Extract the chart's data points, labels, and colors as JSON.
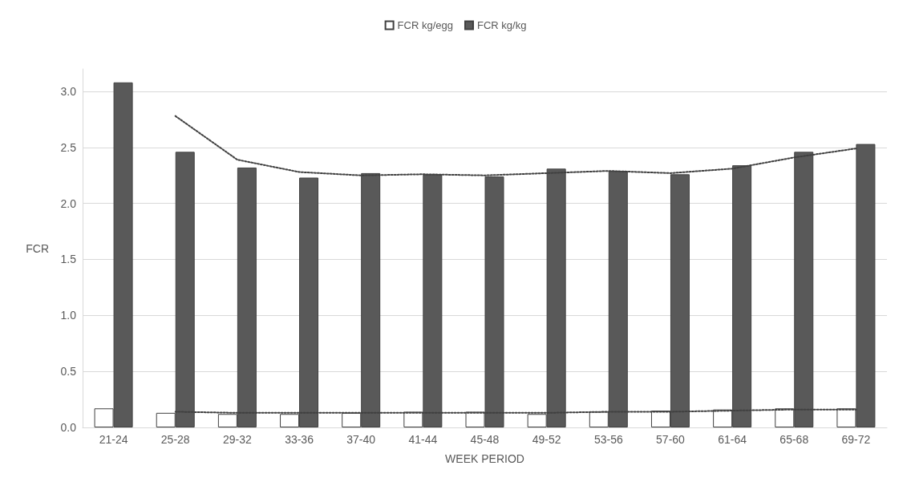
{
  "chart_data": {
    "type": "bar",
    "xlabel": "WEEK PERIOD",
    "ylabel": "FCR",
    "categories": [
      "21-24",
      "25-28",
      "29-32",
      "33-36",
      "37-40",
      "41-44",
      "45-48",
      "49-52",
      "53-56",
      "57-60",
      "61-64",
      "65-68",
      "69-72"
    ],
    "series": [
      {
        "name": "FCR kg/egg",
        "color": "#ffffff",
        "values": [
          0.17,
          0.13,
          0.12,
          0.12,
          0.13,
          0.14,
          0.14,
          0.12,
          0.14,
          0.15,
          0.16,
          0.17,
          0.17
        ]
      },
      {
        "name": "FCR kg/kg",
        "color": "#595959",
        "values": [
          3.08,
          2.46,
          2.32,
          2.23,
          2.27,
          2.26,
          2.24,
          2.31,
          2.29,
          2.26,
          2.34,
          2.46,
          2.53
        ]
      },
      {
        "type": "line",
        "color": "#404040",
        "line_style": "dotted",
        "values": [
          null,
          0.14,
          0.13,
          0.13,
          0.13,
          0.13,
          0.13,
          0.13,
          0.14,
          0.14,
          0.15,
          0.16,
          0.16
        ]
      },
      {
        "type": "line",
        "color": "#404040",
        "line_style": "dotted",
        "values": [
          null,
          2.78,
          2.39,
          2.28,
          2.25,
          2.26,
          2.25,
          2.27,
          2.29,
          2.27,
          2.31,
          2.41,
          2.49
        ]
      }
    ],
    "ylim": [
      0,
      3.2
    ],
    "yticks": [
      {
        "value": 0,
        "label": "0.0"
      },
      0.5,
      {
        "value": 1,
        "label": "1.0"
      },
      1.5,
      {
        "value": 2,
        "label": "2.0"
      },
      2.5,
      {
        "value": 3,
        "label": "3.0"
      }
    ],
    "grid": "y",
    "legend": "top",
    "marker": "none"
  }
}
